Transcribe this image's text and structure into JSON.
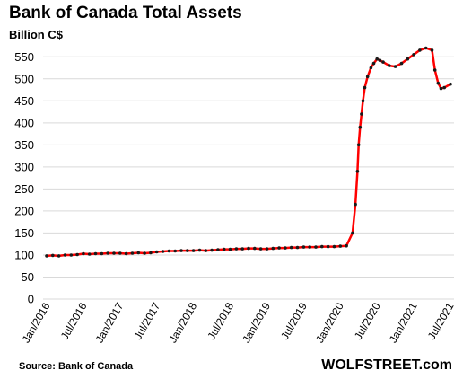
{
  "chart_data": {
    "type": "line",
    "title": "Bank of Canada Total Assets",
    "ylabel": "Billion C$",
    "source": "Source: Bank of Canada",
    "brand": "WOLFSTREET.com",
    "ylim": [
      0,
      575
    ],
    "yticks": [
      0,
      50,
      100,
      150,
      200,
      250,
      300,
      350,
      400,
      450,
      500,
      550
    ],
    "xticks": [
      "Jan/2016",
      "Jul/2016",
      "Jan/2017",
      "Jul/2017",
      "Jan/2018",
      "Jul/2018",
      "Jan/2019",
      "Jul/2019",
      "Jan/2020",
      "Jul/2020",
      "Jan/2021",
      "Jul/2021"
    ],
    "grid": "horizontal",
    "line_color": "#ff0000",
    "marker_color": "#1a1a1a",
    "series": [
      {
        "x": [
          "2016-01",
          "2016-02",
          "2016-03",
          "2016-04",
          "2016-05",
          "2016-06",
          "2016-07",
          "2016-08",
          "2016-09",
          "2016-10",
          "2016-11",
          "2016-12",
          "2017-01",
          "2017-02",
          "2017-03",
          "2017-04",
          "2017-05",
          "2017-06",
          "2017-07",
          "2017-08",
          "2017-09",
          "2017-10",
          "2017-11",
          "2017-12",
          "2018-01",
          "2018-02",
          "2018-03",
          "2018-04",
          "2018-05",
          "2018-06",
          "2018-07",
          "2018-08",
          "2018-09",
          "2018-10",
          "2018-11",
          "2018-12",
          "2019-01",
          "2019-02",
          "2019-03",
          "2019-04",
          "2019-05",
          "2019-06",
          "2019-07",
          "2019-08",
          "2019-09",
          "2019-10",
          "2019-11",
          "2019-12",
          "2020-01",
          "2020-02",
          "2020-03-01",
          "2020-03-15",
          "2020-03-25",
          "2020-04-01",
          "2020-04-08",
          "2020-04-15",
          "2020-04-22",
          "2020-05-01",
          "2020-05-15",
          "2020-06-01",
          "2020-06-15",
          "2020-07-01",
          "2020-07-15",
          "2020-08",
          "2020-09",
          "2020-10",
          "2020-11",
          "2020-12",
          "2021-01",
          "2021-02",
          "2021-03",
          "2021-04-01",
          "2021-04-15",
          "2021-05-01",
          "2021-05-15",
          "2021-06",
          "2021-07"
        ],
        "values": [
          98,
          99,
          98,
          100,
          100,
          101,
          103,
          102,
          103,
          103,
          104,
          104,
          104,
          103,
          104,
          105,
          104,
          105,
          107,
          108,
          109,
          109,
          110,
          110,
          110,
          111,
          110,
          111,
          112,
          113,
          113,
          114,
          114,
          115,
          115,
          114,
          114,
          115,
          116,
          116,
          117,
          117,
          118,
          118,
          118,
          119,
          119,
          119,
          120,
          121,
          150,
          215,
          290,
          350,
          390,
          420,
          450,
          480,
          505,
          525,
          535,
          545,
          542,
          538,
          530,
          528,
          535,
          545,
          555,
          565,
          570,
          565,
          520,
          490,
          478,
          480,
          488
        ]
      }
    ]
  }
}
